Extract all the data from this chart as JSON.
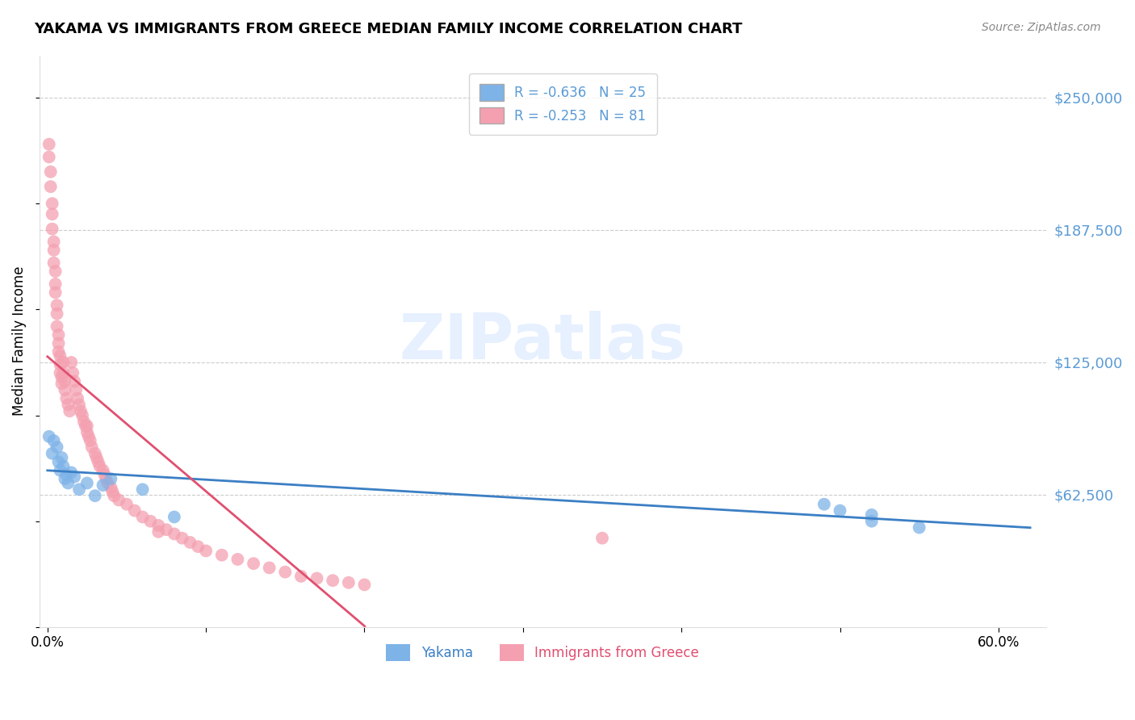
{
  "title": "YAKAMA VS IMMIGRANTS FROM GREECE MEDIAN FAMILY INCOME CORRELATION CHART",
  "source": "Source: ZipAtlas.com",
  "ylabel": "Median Family Income",
  "watermark": "ZIPatlas",
  "ytick_labels": [
    "$250,000",
    "$187,500",
    "$125,000",
    "$62,500"
  ],
  "ytick_values": [
    250000,
    187500,
    125000,
    62500
  ],
  "ymin": 0,
  "ymax": 270000,
  "xmin": -0.005,
  "xmax": 0.63,
  "legend_blue_label": "R = -0.636   N = 25",
  "legend_pink_label": "R = -0.253   N = 81",
  "blue_color": "#7EB3E8",
  "pink_color": "#F4A0B0",
  "blue_line_color": "#3B7FC4",
  "pink_line_color": "#E05070",
  "pink_dashed_color": "#F0B8C4",
  "yakama_x": [
    0.001,
    0.003,
    0.004,
    0.006,
    0.007,
    0.008,
    0.009,
    0.01,
    0.011,
    0.012,
    0.013,
    0.015,
    0.017,
    0.02,
    0.025,
    0.03,
    0.035,
    0.04,
    0.06,
    0.08,
    0.5,
    0.52,
    0.55,
    0.52,
    0.49
  ],
  "yakama_y": [
    90000,
    82000,
    88000,
    85000,
    78000,
    74000,
    80000,
    76000,
    70000,
    72000,
    68000,
    73000,
    71000,
    65000,
    68000,
    62000,
    67000,
    70000,
    65000,
    52000,
    55000,
    50000,
    47000,
    53000,
    58000
  ],
  "greece_x": [
    0.001,
    0.001,
    0.002,
    0.002,
    0.003,
    0.003,
    0.003,
    0.004,
    0.004,
    0.004,
    0.005,
    0.005,
    0.005,
    0.006,
    0.006,
    0.006,
    0.007,
    0.007,
    0.007,
    0.008,
    0.008,
    0.008,
    0.009,
    0.009,
    0.01,
    0.01,
    0.011,
    0.011,
    0.012,
    0.013,
    0.014,
    0.015,
    0.016,
    0.017,
    0.018,
    0.019,
    0.02,
    0.021,
    0.022,
    0.023,
    0.024,
    0.025,
    0.026,
    0.027,
    0.028,
    0.03,
    0.031,
    0.032,
    0.033,
    0.035,
    0.036,
    0.037,
    0.038,
    0.04,
    0.041,
    0.042,
    0.045,
    0.05,
    0.055,
    0.06,
    0.065,
    0.07,
    0.075,
    0.08,
    0.085,
    0.09,
    0.095,
    0.1,
    0.11,
    0.12,
    0.13,
    0.14,
    0.15,
    0.16,
    0.17,
    0.18,
    0.19,
    0.2,
    0.025,
    0.07,
    0.35
  ],
  "greece_y": [
    228000,
    222000,
    215000,
    208000,
    200000,
    195000,
    188000,
    182000,
    178000,
    172000,
    168000,
    162000,
    158000,
    152000,
    148000,
    142000,
    138000,
    134000,
    130000,
    128000,
    124000,
    120000,
    118000,
    115000,
    125000,
    120000,
    116000,
    112000,
    108000,
    105000,
    102000,
    125000,
    120000,
    116000,
    112000,
    108000,
    105000,
    102000,
    100000,
    97000,
    95000,
    92000,
    90000,
    88000,
    85000,
    82000,
    80000,
    78000,
    76000,
    74000,
    72000,
    70000,
    68000,
    66000,
    64000,
    62000,
    60000,
    58000,
    55000,
    52000,
    50000,
    48000,
    46000,
    44000,
    42000,
    40000,
    38000,
    36000,
    34000,
    32000,
    30000,
    28000,
    26000,
    24000,
    23000,
    22000,
    21000,
    20000,
    95000,
    45000,
    42000
  ]
}
